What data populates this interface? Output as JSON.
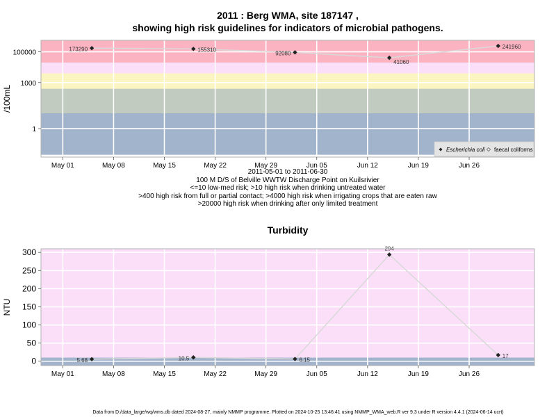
{
  "chart_data": [
    {
      "type": "line",
      "title": "2011 : Berg WMA, site 187147 ,",
      "subtitle": "showing high risk guidelines for indicators of microbial pathogens.",
      "ylabel": "/100mL",
      "y_scale": "log10",
      "yticks": [
        {
          "value": 1,
          "label": "1"
        },
        {
          "value": 1000,
          "label": "1000"
        },
        {
          "value": 100000,
          "label": "100000"
        }
      ],
      "xlim": [
        "2011-04-28",
        "2011-07-05"
      ],
      "xticks": [
        {
          "date": "2011-05-01",
          "label": "May 01"
        },
        {
          "date": "2011-05-08",
          "label": "May 08"
        },
        {
          "date": "2011-05-15",
          "label": "May 15"
        },
        {
          "date": "2011-05-22",
          "label": "May 22"
        },
        {
          "date": "2011-05-29",
          "label": "May 29"
        },
        {
          "date": "2011-06-05",
          "label": "Jun 05"
        },
        {
          "date": "2011-06-12",
          "label": "Jun 12"
        },
        {
          "date": "2011-06-19",
          "label": "Jun 19"
        },
        {
          "date": "2011-06-26",
          "label": "Jun 26"
        }
      ],
      "bands": [
        {
          "from": 0.02,
          "to": 10,
          "color": "#a2b4cc"
        },
        {
          "from": 10,
          "to": 400,
          "color": "#c1cbbf"
        },
        {
          "from": 400,
          "to": 4000,
          "color": "#fbf5c2"
        },
        {
          "from": 4000,
          "to": 20000,
          "color": "#fbdff8"
        },
        {
          "from": 20000,
          "to": 600000,
          "color": "#fbb3c2"
        }
      ],
      "series": [
        {
          "name": "Escherichia coli",
          "points": [
            {
              "date": "2011-05-05",
              "value": 173290,
              "label": "173290"
            },
            {
              "date": "2011-05-19",
              "value": 155310,
              "label": "155310"
            },
            {
              "date": "2011-06-02",
              "value": 92080,
              "label": "92080"
            },
            {
              "date": "2011-06-15",
              "value": 41060,
              "label": "41060"
            },
            {
              "date": "2011-06-30",
              "value": 241960,
              "label": "241960"
            }
          ]
        }
      ],
      "legend": {
        "position": "bottom-right",
        "entries": [
          {
            "label": "Escherichia coli",
            "symbol": "filled-diamond"
          },
          {
            "label": "faecal coliforms",
            "symbol": "open-diamond"
          }
        ]
      },
      "notes": [
        "2011-05-01 to 2011-06-30",
        "100 M D/S of Belville WWTW Discharge Point on Kuilsrivier",
        "<=10 low-med risk; >10 high risk when drinking untreated water",
        ">400 high risk from full or partial contact; >4000 high risk when irrigating crops that are eaten raw",
        ">20000 high risk when drinking after only limited treatment"
      ],
      "grid": true
    },
    {
      "type": "line",
      "title": "Turbidity",
      "ylabel": "NTU",
      "ylim": [
        -12,
        310
      ],
      "yticks": [
        0,
        50,
        100,
        150,
        200,
        250,
        300
      ],
      "xlim": [
        "2011-04-28",
        "2011-07-05"
      ],
      "xticks": [
        {
          "date": "2011-05-01",
          "label": "May 01"
        },
        {
          "date": "2011-05-08",
          "label": "May 08"
        },
        {
          "date": "2011-05-15",
          "label": "May 15"
        },
        {
          "date": "2011-05-22",
          "label": "May 22"
        },
        {
          "date": "2011-05-29",
          "label": "May 29"
        },
        {
          "date": "2011-06-05",
          "label": "Jun 05"
        },
        {
          "date": "2011-06-12",
          "label": "Jun 12"
        },
        {
          "date": "2011-06-19",
          "label": "Jun 19"
        },
        {
          "date": "2011-06-26",
          "label": "Jun 26"
        }
      ],
      "bands": [
        {
          "from": -12,
          "to": 10,
          "color": "#a2b4cc"
        },
        {
          "from": 10,
          "to": 310,
          "color": "#fbdff8"
        }
      ],
      "series": [
        {
          "points": [
            {
              "date": "2011-05-05",
              "value": 5.68,
              "label": "5.68"
            },
            {
              "date": "2011-05-19",
              "value": 10.5,
              "label": "10.5"
            },
            {
              "date": "2011-06-02",
              "value": 6.15,
              "label": "6.15"
            },
            {
              "date": "2011-06-15",
              "value": 294,
              "label": "294"
            },
            {
              "date": "2011-06-30",
              "value": 17,
              "label": "17"
            }
          ]
        }
      ],
      "grid": true
    }
  ],
  "footer": "Data from D:/data_large/wq/wms.db dated 2024-08-27, mainly NMMP programme. Plotted on 2024-10-25 13:46:41 using NMMP_WMA_web.R ver 9.3 under R version 4.4.1 (2024-06-14 ucrt)",
  "colors": {
    "grid": "#ffffff",
    "line": "#d9d9d9",
    "point": "#222222",
    "frame": "#b0b0b0"
  }
}
